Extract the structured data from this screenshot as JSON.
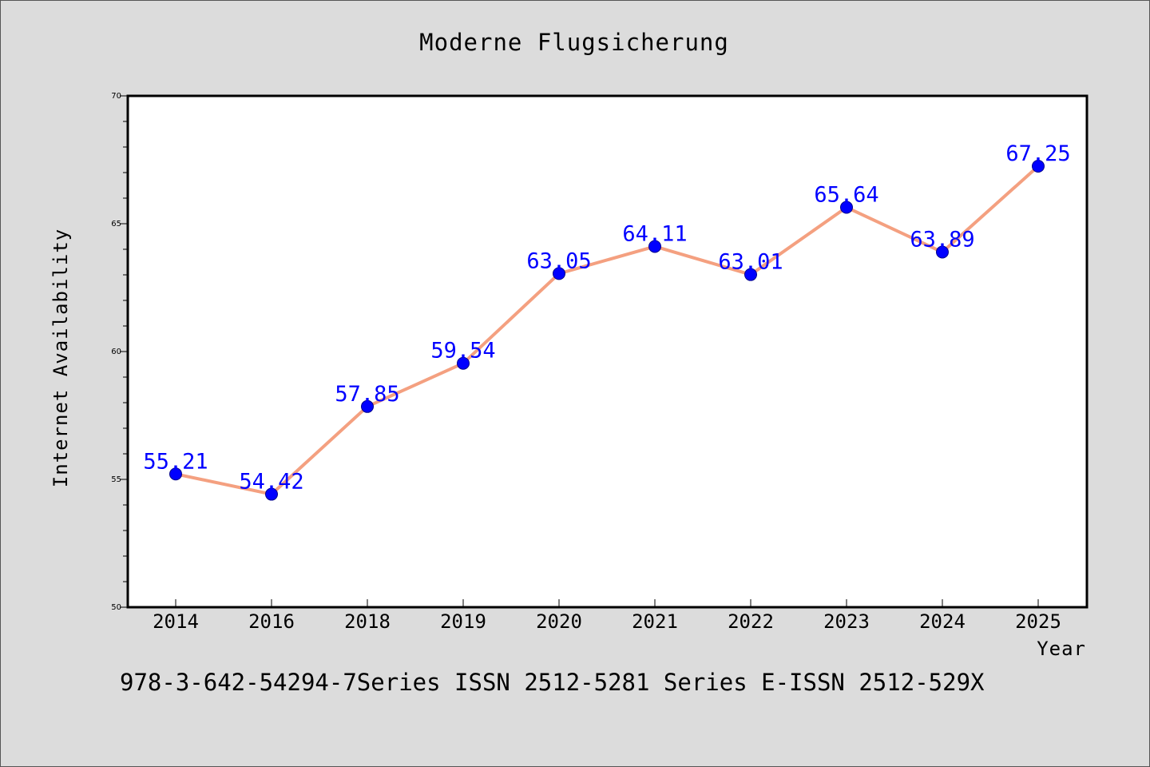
{
  "colors": {
    "background": "#dcdcdc",
    "plot_background": "#ffffff",
    "line": "#f4a080",
    "marker": "#0000ff",
    "data_label": "#0000ff"
  },
  "chart_data": {
    "type": "line",
    "title": "Moderne Flugsicherung",
    "xlabel": "Year",
    "ylabel": "Internet Availability",
    "categories": [
      "2014",
      "2016",
      "2018",
      "2019",
      "2020",
      "2021",
      "2022",
      "2023",
      "2024",
      "2025"
    ],
    "series": [
      {
        "values": [
          55.21,
          54.42,
          57.85,
          59.54,
          63.05,
          64.11,
          63.01,
          65.64,
          63.89,
          67.25
        ],
        "labels": [
          "55.21",
          "54.42",
          "57.85",
          "59.54",
          "63.05",
          "64.11",
          "63.01",
          "65.64",
          "63.89",
          "67.25"
        ]
      }
    ],
    "ylim": [
      50,
      70
    ],
    "yticks": [
      "50",
      "55",
      "60",
      "65",
      "70"
    ],
    "grid": false,
    "legend": "none"
  },
  "footnote": "978-3-642-54294-7Series ISSN 2512-5281 Series E-ISSN 2512-529X"
}
